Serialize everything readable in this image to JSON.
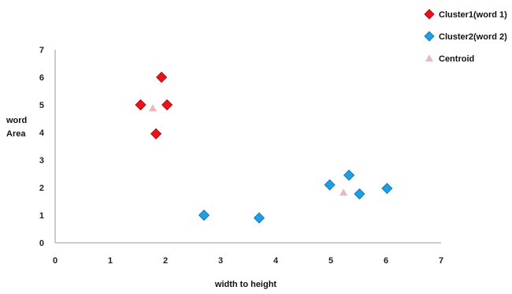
{
  "chart_data": {
    "type": "scatter",
    "title": "",
    "xlabel": "width to height",
    "ylabel_lines": [
      "word",
      "Area"
    ],
    "xlim": [
      0,
      7
    ],
    "ylim": [
      0,
      7
    ],
    "xticks": [
      "0",
      "1",
      "2",
      "3",
      "4",
      "5",
      "6",
      "7"
    ],
    "yticks": [
      "0",
      "1",
      "2",
      "3",
      "4",
      "5",
      "6",
      "7"
    ],
    "grid": false,
    "legend_position": "top-right",
    "series": [
      {
        "name": "Cluster1(word 1)",
        "marker": "diamond",
        "color": "#e8121b",
        "stroke": "#b00000",
        "points": [
          {
            "x": 1.55,
            "y": 5.0
          },
          {
            "x": 1.93,
            "y": 6.0
          },
          {
            "x": 2.03,
            "y": 5.0
          },
          {
            "x": 1.83,
            "y": 3.95
          }
        ]
      },
      {
        "name": "Cluster2(word 2)",
        "marker": "diamond",
        "color": "#1e9ee6",
        "stroke": "#0f6fa8",
        "points": [
          {
            "x": 2.7,
            "y": 1.0
          },
          {
            "x": 3.7,
            "y": 0.9
          },
          {
            "x": 4.98,
            "y": 2.1
          },
          {
            "x": 5.33,
            "y": 2.45
          },
          {
            "x": 5.52,
            "y": 1.77
          },
          {
            "x": 6.02,
            "y": 1.97
          }
        ]
      },
      {
        "name": "Centroid",
        "marker": "triangle",
        "color": "#e9b7bc",
        "stroke": "#e9b7bc",
        "points": [
          {
            "x": 1.77,
            "y": 4.88
          },
          {
            "x": 5.23,
            "y": 1.82
          }
        ]
      }
    ]
  }
}
